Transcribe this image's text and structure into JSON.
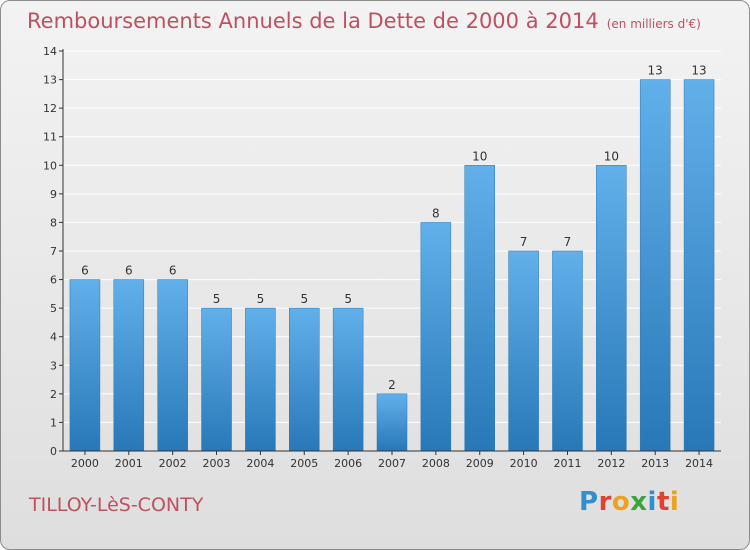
{
  "title": {
    "main": "Remboursements Annuels de la Dette de 2000 à 2014",
    "unit": "(en milliers d'€)"
  },
  "commune": "TILLOY-LèS-CONTY",
  "logo": {
    "letters": [
      "P",
      "r",
      "o",
      "x",
      "i",
      "t",
      "i"
    ],
    "colors": [
      "#2f8fcf",
      "#e0402f",
      "#f0a020",
      "#3aa53a",
      "#2f8fcf",
      "#e0402f",
      "#f0a020"
    ]
  },
  "colors": {
    "bar_top": "#62b0ea",
    "bar_bottom": "#2878b8",
    "axis": "#333333",
    "grid": "#ffffff",
    "title": "#c0505f"
  },
  "chart_data": {
    "type": "bar",
    "title": "Remboursements Annuels de la Dette de 2000 à 2014",
    "xlabel": "",
    "ylabel": "",
    "categories": [
      "2000",
      "2001",
      "2002",
      "2003",
      "2004",
      "2005",
      "2006",
      "2007",
      "2008",
      "2009",
      "2010",
      "2011",
      "2012",
      "2013",
      "2014"
    ],
    "values": [
      6,
      6,
      6,
      5,
      5,
      5,
      5,
      2,
      8,
      10,
      7,
      7,
      10,
      13,
      13
    ],
    "ylim": [
      0,
      14
    ],
    "yticks": [
      "0",
      "1",
      "2",
      "3",
      "4",
      "5",
      "6",
      "7",
      "8",
      "9",
      "10",
      "11",
      "12",
      "13",
      "14"
    ],
    "grid": true,
    "legend": "none"
  }
}
